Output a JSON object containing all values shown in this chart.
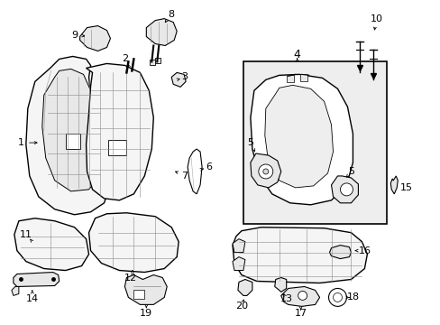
{
  "background_color": "#ffffff",
  "line_color": "#000000",
  "label_color": "#000000",
  "fig_width": 4.89,
  "fig_height": 3.6,
  "dpi": 100,
  "fill_light": "#f5f5f5",
  "fill_mid": "#e8e8e8",
  "fill_dark": "#d8d8d8",
  "fill_box": "#eeeeee"
}
